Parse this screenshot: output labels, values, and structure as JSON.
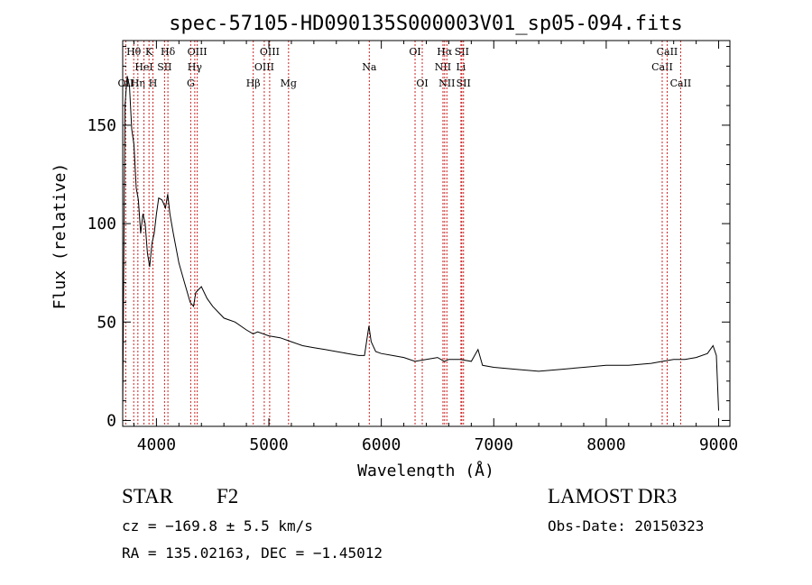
{
  "chart_data": {
    "type": "line",
    "title": "spec-57105-HD090135S000003V01_sp05-094.fits",
    "xlabel": "Wavelength (Å)",
    "ylabel": "Flux (relative)",
    "xlim": [
      3700,
      9100
    ],
    "ylim": [
      -3,
      193
    ],
    "xticks": [
      4000,
      5000,
      6000,
      7000,
      8000,
      9000
    ],
    "yticks": [
      0,
      50,
      100,
      150
    ],
    "grid": false,
    "series": [
      {
        "name": "spectrum",
        "x": [
          3700,
          3720,
          3740,
          3760,
          3780,
          3800,
          3820,
          3840,
          3860,
          3880,
          3900,
          3920,
          3940,
          3960,
          3980,
          4000,
          4020,
          4050,
          4080,
          4100,
          4120,
          4150,
          4200,
          4250,
          4300,
          4330,
          4350,
          4400,
          4450,
          4500,
          4600,
          4700,
          4800,
          4860,
          4900,
          5000,
          5100,
          5200,
          5300,
          5400,
          5500,
          5600,
          5700,
          5800,
          5850,
          5890,
          5910,
          5950,
          6000,
          6100,
          6200,
          6300,
          6400,
          6500,
          6560,
          6600,
          6700,
          6800,
          6860,
          6900,
          7000,
          7200,
          7400,
          7600,
          7800,
          8000,
          8200,
          8400,
          8500,
          8600,
          8700,
          8800,
          8900,
          8950,
          8980,
          9000
        ],
        "y": [
          5,
          160,
          175,
          170,
          148,
          140,
          118,
          112,
          95,
          105,
          100,
          85,
          78,
          90,
          95,
          105,
          113,
          112,
          108,
          115,
          105,
          95,
          80,
          70,
          60,
          58,
          65,
          68,
          62,
          58,
          52,
          50,
          46,
          44,
          45,
          43,
          42,
          40,
          38,
          37,
          36,
          35,
          34,
          33,
          33,
          48,
          40,
          35,
          34,
          33,
          32,
          30,
          31,
          32,
          30,
          31,
          31,
          30,
          36,
          28,
          27,
          26,
          25,
          26,
          27,
          28,
          28,
          29,
          30,
          31,
          31,
          32,
          34,
          38,
          33,
          5
        ]
      }
    ],
    "spectral_lines": [
      {
        "label": "OII",
        "wavelength": 3727,
        "row": 2
      },
      {
        "label": "Hθ",
        "wavelength": 3798,
        "row": 0
      },
      {
        "label": "Hη",
        "wavelength": 3835,
        "row": 2
      },
      {
        "label": "HeI",
        "wavelength": 3889,
        "row": 1
      },
      {
        "label": "K",
        "wavelength": 3934,
        "row": 0
      },
      {
        "label": "H",
        "wavelength": 3969,
        "row": 2
      },
      {
        "label": "SII",
        "wavelength": 4072,
        "row": 1
      },
      {
        "label": "Hδ",
        "wavelength": 4102,
        "row": 0
      },
      {
        "label": "G",
        "wavelength": 4305,
        "row": 2
      },
      {
        "label": "Hγ",
        "wavelength": 4341,
        "row": 1
      },
      {
        "label": "OIII",
        "wavelength": 4363,
        "row": 0
      },
      {
        "label": "Hβ",
        "wavelength": 4861,
        "row": 2
      },
      {
        "label": "OIII",
        "wavelength": 4959,
        "row": 1
      },
      {
        "label": "OIII",
        "wavelength": 5007,
        "row": 0
      },
      {
        "label": "Mg",
        "wavelength": 5175,
        "row": 2
      },
      {
        "label": "Na",
        "wavelength": 5893,
        "row": 1
      },
      {
        "label": "OI",
        "wavelength": 6300,
        "row": 0
      },
      {
        "label": "OI",
        "wavelength": 6364,
        "row": 2
      },
      {
        "label": "NII",
        "wavelength": 6548,
        "row": 1
      },
      {
        "label": "Hα",
        "wavelength": 6563,
        "row": 0
      },
      {
        "label": "NII",
        "wavelength": 6583,
        "row": 2
      },
      {
        "label": "Li",
        "wavelength": 6708,
        "row": 1
      },
      {
        "label": "SII",
        "wavelength": 6716,
        "row": 0
      },
      {
        "label": "SII",
        "wavelength": 6731,
        "row": 2
      },
      {
        "label": "CaII",
        "wavelength": 8498,
        "row": 1
      },
      {
        "label": "CaII",
        "wavelength": 8542,
        "row": 0
      },
      {
        "label": "CaII",
        "wavelength": 8662,
        "row": 2
      }
    ]
  },
  "info": {
    "object_class": "STAR",
    "subclass": "F2",
    "survey": "LAMOST DR3",
    "redshift": "cz = −169.8 ± 5.5 km/s",
    "obs_date": "Obs-Date: 20150323",
    "coords": "RA = 135.02163, DEC =  −1.45012"
  },
  "colors": {
    "line": "#000000",
    "marker": "#cc2222",
    "background": "#ffffff"
  }
}
